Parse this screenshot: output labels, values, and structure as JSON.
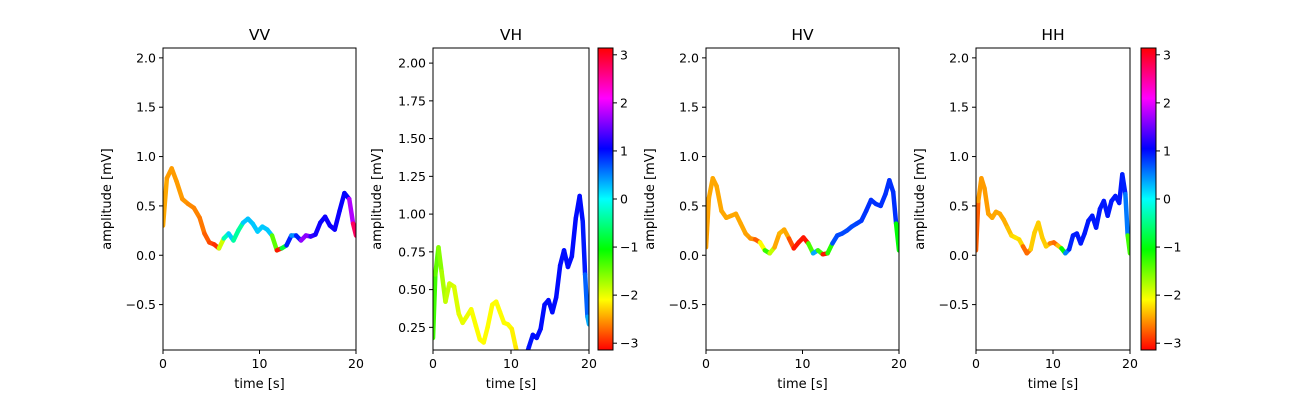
{
  "chart_data": [
    {
      "type": "line",
      "title": "VV",
      "xlabel": "time [s]",
      "ylabel": "amplitude [mV]",
      "xlim": [
        0,
        20
      ],
      "ylim": [
        -0.96,
        2.1
      ],
      "xticks": [
        0,
        10,
        20
      ],
      "xtick_labels": [
        "0",
        "10",
        "20"
      ],
      "yticks": [
        -0.5,
        0.0,
        0.5,
        1.0,
        1.5,
        2.0
      ],
      "ytick_labels": [
        "−0.5",
        "0.0",
        "0.5",
        "1.0",
        "1.5",
        "2.0"
      ],
      "x": [
        0,
        0.4,
        0.9,
        1.4,
        2.0,
        2.6,
        3.2,
        3.8,
        4.3,
        4.8,
        5.3,
        5.8,
        6.3,
        6.8,
        7.3,
        7.8,
        8.3,
        8.8,
        9.3,
        9.8,
        10.3,
        10.8,
        11.3,
        11.8,
        12.3,
        12.8,
        13.3,
        13.8,
        14.3,
        14.8,
        15.3,
        15.8,
        16.3,
        16.8,
        17.3,
        17.8,
        18.3,
        18.8,
        19.3,
        19.7,
        20
      ],
      "y": [
        0.3,
        0.78,
        0.88,
        0.75,
        0.57,
        0.52,
        0.48,
        0.38,
        0.22,
        0.13,
        0.11,
        0.07,
        0.17,
        0.22,
        0.15,
        0.25,
        0.33,
        0.37,
        0.32,
        0.24,
        0.29,
        0.26,
        0.2,
        0.05,
        0.07,
        0.1,
        0.2,
        0.2,
        0.15,
        0.2,
        0.19,
        0.21,
        0.33,
        0.39,
        0.3,
        0.26,
        0.45,
        0.63,
        0.57,
        0.32,
        0.2
      ],
      "phase": [
        -2.4,
        -2.5,
        -2.5,
        -2.5,
        -2.5,
        -2.55,
        -2.6,
        -2.6,
        -2.7,
        -2.8,
        -2.9,
        -3.0,
        -0.8,
        0.2,
        0.2,
        -1.0,
        0.2,
        0.25,
        0.25,
        0.2,
        0.2,
        0.25,
        0.2,
        -3.05,
        -3.05,
        1.4,
        0.45,
        0.45,
        1.4,
        1.9,
        1.3,
        1.2,
        1.05,
        1.1,
        1.1,
        1.1,
        1.1,
        1.05,
        1.05,
        2.5,
        3.0
      ]
    },
    {
      "type": "line",
      "title": "VH",
      "xlabel": "time [s]",
      "ylabel": "amplitude [mV]",
      "xlim": [
        0,
        20
      ],
      "ylim": [
        0.1,
        2.1
      ],
      "xticks": [
        0,
        10,
        20
      ],
      "xtick_labels": [
        "0",
        "10",
        "20"
      ],
      "yticks": [
        0.25,
        0.5,
        0.75,
        1.0,
        1.25,
        1.5,
        1.75,
        2.0
      ],
      "ytick_labels": [
        "0.25",
        "0.50",
        "0.75",
        "1.00",
        "1.25",
        "1.50",
        "1.75",
        "2.00"
      ],
      "x": [
        0,
        0.3,
        0.7,
        1.1,
        1.6,
        2.1,
        2.7,
        3.3,
        3.8,
        4.3,
        4.9,
        5.5,
        6.0,
        6.5,
        7.0,
        7.6,
        8.1,
        8.6,
        9.1,
        9.6,
        10.1,
        10.6,
        11.0,
        11.4,
        11.8,
        12.3,
        12.8,
        13.3,
        13.8,
        14.3,
        14.8,
        15.3,
        15.8,
        16.3,
        16.8,
        17.3,
        17.8,
        18.3,
        18.8,
        19.2,
        19.5,
        19.8,
        20
      ],
      "y": [
        0.18,
        0.6,
        0.78,
        0.62,
        0.42,
        0.54,
        0.52,
        0.34,
        0.28,
        0.32,
        0.37,
        0.26,
        0.17,
        0.15,
        0.25,
        0.4,
        0.42,
        0.35,
        0.28,
        0.27,
        0.24,
        0.12,
        0.04,
        0.04,
        0.04,
        0.12,
        0.2,
        0.18,
        0.24,
        0.4,
        0.43,
        0.35,
        0.45,
        0.66,
        0.76,
        0.65,
        0.72,
        0.97,
        1.12,
        0.95,
        0.6,
        0.32,
        0.27
      ],
      "phase": [
        -1.2,
        -1.4,
        -1.5,
        -1.7,
        -1.8,
        -1.9,
        -1.9,
        -2.0,
        -2.0,
        -2.0,
        -2.05,
        -2.1,
        -2.1,
        -2.1,
        -2.1,
        -2.1,
        -2.1,
        -2.1,
        -2.1,
        -2.1,
        -2.1,
        -2.2,
        -2.2,
        0.9,
        1.0,
        0.95,
        1.0,
        1.0,
        1.0,
        1.0,
        1.0,
        1.0,
        1.0,
        1.0,
        1.0,
        1.0,
        1.0,
        1.0,
        1.0,
        1.0,
        0.9,
        0.4,
        0.3
      ]
    },
    {
      "type": "line",
      "title": "HV",
      "xlabel": "time [s]",
      "ylabel": "amplitude [mV]",
      "xlim": [
        0,
        20
      ],
      "ylim": [
        -0.96,
        2.1
      ],
      "xticks": [
        0,
        10,
        20
      ],
      "xtick_labels": [
        "0",
        "10",
        "20"
      ],
      "yticks": [
        -0.5,
        0.0,
        0.5,
        1.0,
        1.5,
        2.0
      ],
      "ytick_labels": [
        "−0.5",
        "0.0",
        "0.5",
        "1.0",
        "1.5",
        "2.0"
      ],
      "x": [
        0,
        0.3,
        0.7,
        1.1,
        1.6,
        2.1,
        2.6,
        3.1,
        3.6,
        4.1,
        4.6,
        5.1,
        5.6,
        6.1,
        6.6,
        7.1,
        7.6,
        8.1,
        8.6,
        9.1,
        9.6,
        10.1,
        10.6,
        11.1,
        11.6,
        12.1,
        12.6,
        13.1,
        13.6,
        14.1,
        14.6,
        15.1,
        15.6,
        16.1,
        16.6,
        17.1,
        17.6,
        18.1,
        18.6,
        19.0,
        19.4,
        19.7,
        20
      ],
      "y": [
        0.08,
        0.58,
        0.78,
        0.7,
        0.45,
        0.38,
        0.4,
        0.42,
        0.32,
        0.22,
        0.17,
        0.16,
        0.13,
        0.05,
        0.02,
        0.08,
        0.22,
        0.26,
        0.17,
        0.07,
        0.13,
        0.18,
        0.12,
        0.02,
        0.05,
        0.01,
        0.02,
        0.12,
        0.2,
        0.22,
        0.25,
        0.29,
        0.32,
        0.35,
        0.45,
        0.56,
        0.52,
        0.5,
        0.62,
        0.76,
        0.64,
        0.32,
        0.05
      ],
      "phase": [
        -2.5,
        -2.45,
        -2.45,
        -2.45,
        -2.45,
        -2.45,
        -2.45,
        -2.45,
        -2.45,
        -2.45,
        -2.5,
        -2.6,
        -2.9,
        -1.3,
        -1.2,
        -2.5,
        -2.4,
        -2.4,
        -2.5,
        -3.1,
        -3.0,
        -3.1,
        -3.0,
        0.3,
        0.4,
        -3.0,
        -3.1,
        0.7,
        0.75,
        0.75,
        0.75,
        0.75,
        0.75,
        0.8,
        0.85,
        0.85,
        0.85,
        0.85,
        0.85,
        0.85,
        0.85,
        0.85,
        -2.9
      ]
    },
    {
      "type": "line",
      "title": "HH",
      "xlabel": "time [s]",
      "ylabel": "amplitude [mV]",
      "xlim": [
        0,
        20
      ],
      "ylim": [
        -0.96,
        2.1
      ],
      "xticks": [
        0,
        10,
        20
      ],
      "xtick_labels": [
        "0",
        "10",
        "20"
      ],
      "yticks": [
        -0.5,
        0.0,
        0.5,
        1.0,
        1.5,
        2.0
      ],
      "ytick_labels": [
        "−0.5",
        "0.0",
        "0.5",
        "1.0",
        "1.5",
        "2.0"
      ],
      "x": [
        0,
        0.3,
        0.7,
        1.1,
        1.6,
        2.1,
        2.6,
        3.1,
        3.6,
        4.1,
        4.6,
        5.1,
        5.6,
        6.1,
        6.6,
        7.1,
        7.6,
        8.1,
        8.6,
        9.1,
        9.6,
        10.1,
        10.6,
        11.1,
        11.6,
        12.1,
        12.6,
        13.1,
        13.6,
        14.1,
        14.6,
        15.1,
        15.6,
        16.1,
        16.6,
        17.1,
        17.6,
        18.1,
        18.6,
        19.0,
        19.4,
        19.7,
        20
      ],
      "y": [
        0.05,
        0.55,
        0.78,
        0.68,
        0.42,
        0.38,
        0.44,
        0.42,
        0.36,
        0.28,
        0.2,
        0.18,
        0.16,
        0.09,
        0.02,
        0.06,
        0.23,
        0.33,
        0.18,
        0.09,
        0.12,
        0.13,
        0.1,
        0.07,
        0.02,
        0.06,
        0.2,
        0.22,
        0.12,
        0.22,
        0.35,
        0.4,
        0.28,
        0.47,
        0.55,
        0.4,
        0.55,
        0.6,
        0.53,
        0.82,
        0.62,
        0.2,
        0.02
      ],
      "phase": [
        -3.0,
        -2.5,
        -2.5,
        -2.5,
        -2.5,
        -2.45,
        -2.45,
        -2.45,
        -2.45,
        -2.4,
        -2.3,
        -2.2,
        -2.2,
        -2.3,
        -3.1,
        -2.3,
        -2.3,
        -2.3,
        -2.3,
        -2.3,
        -2.3,
        -2.9,
        -2.5,
        -2.2,
        0.1,
        0.9,
        0.9,
        0.95,
        0.95,
        0.95,
        0.95,
        0.95,
        0.95,
        0.95,
        0.95,
        0.95,
        0.95,
        0.95,
        0.95,
        0.95,
        0.9,
        0.2,
        -2.8
      ]
    }
  ],
  "colorbar": {
    "colormap": "hsv",
    "range": [
      -3.14159,
      3.14159
    ],
    "ticks": [
      -3,
      -2,
      -1,
      0,
      1,
      2,
      3
    ],
    "tick_labels": [
      "−3",
      "−2",
      "−1",
      "0",
      "1",
      "2",
      "3"
    ]
  }
}
